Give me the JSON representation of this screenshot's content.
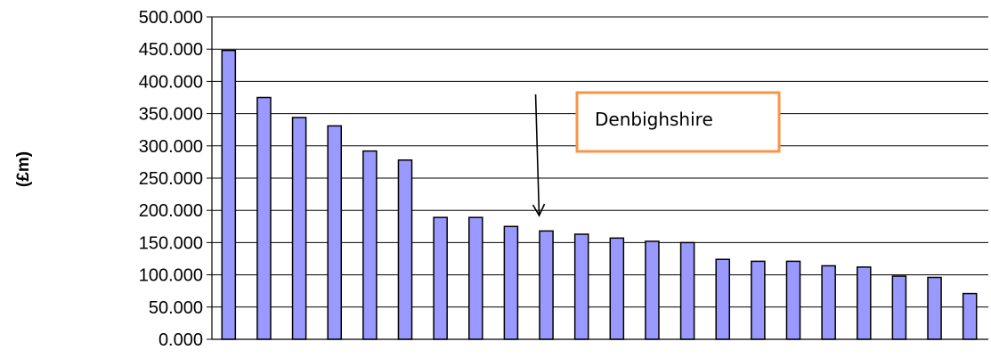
{
  "chart_data": {
    "type": "bar",
    "title": "",
    "xlabel": "",
    "ylabel": "(£m)",
    "ylim": [
      0,
      500
    ],
    "yticks": [
      "0.000",
      "50.000",
      "100.000",
      "150.000",
      "200.000",
      "250.000",
      "300.000",
      "350.000",
      "400.000",
      "450.000",
      "500.000"
    ],
    "values": [
      448,
      375,
      344,
      331,
      292,
      278,
      189,
      189,
      175,
      168,
      163,
      157,
      152,
      150,
      124,
      121,
      121,
      114,
      112,
      98,
      96,
      71
    ],
    "grid": "horizontal",
    "legend": "none",
    "bar_color": "#9999ff",
    "bar_edge_color": "#000000",
    "annotation": {
      "text": "Denbighshire",
      "target_index": 9,
      "box_border_color": "#f79646"
    }
  }
}
